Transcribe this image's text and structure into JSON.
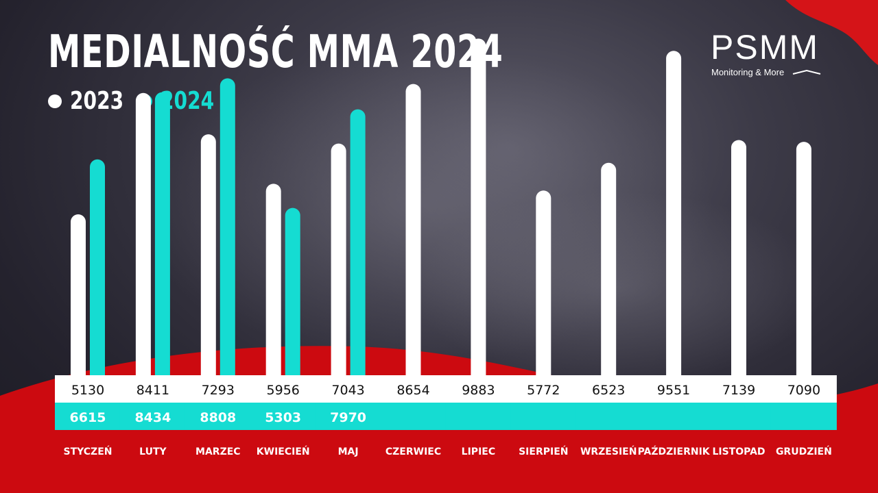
{
  "title": "MEDIALNOŚĆ MMA 2024",
  "brand": {
    "name": "PSMM",
    "tagline": "Monitoring & More"
  },
  "colors": {
    "series_2023": "#ffffff",
    "series_2024": "#15dcd2",
    "red": "#cc0a10",
    "label_text": "#111111"
  },
  "chart_data": {
    "type": "bar",
    "title": "MEDIALNOŚĆ MMA 2024",
    "xlabel": "",
    "ylabel": "",
    "ylim": [
      0,
      10000
    ],
    "legend": "top-left",
    "grid": false,
    "categories": [
      "STYCZEŃ",
      "LUTY",
      "MARZEC",
      "KWIECIEŃ",
      "MAJ",
      "CZERWIEC",
      "LIPIEC",
      "SIERPIEŃ",
      "WRZESIEŃ",
      "PAŹDZIERNIK",
      "LISTOPAD",
      "GRUDZIEŃ"
    ],
    "series": [
      {
        "name": "2023",
        "values": [
          5130,
          8411,
          7293,
          5956,
          7043,
          8654,
          9883,
          5772,
          6523,
          9551,
          7139,
          7090
        ]
      },
      {
        "name": "2024",
        "values": [
          6615,
          8434,
          8808,
          5303,
          7970,
          null,
          null,
          null,
          null,
          null,
          null,
          null
        ]
      }
    ]
  }
}
